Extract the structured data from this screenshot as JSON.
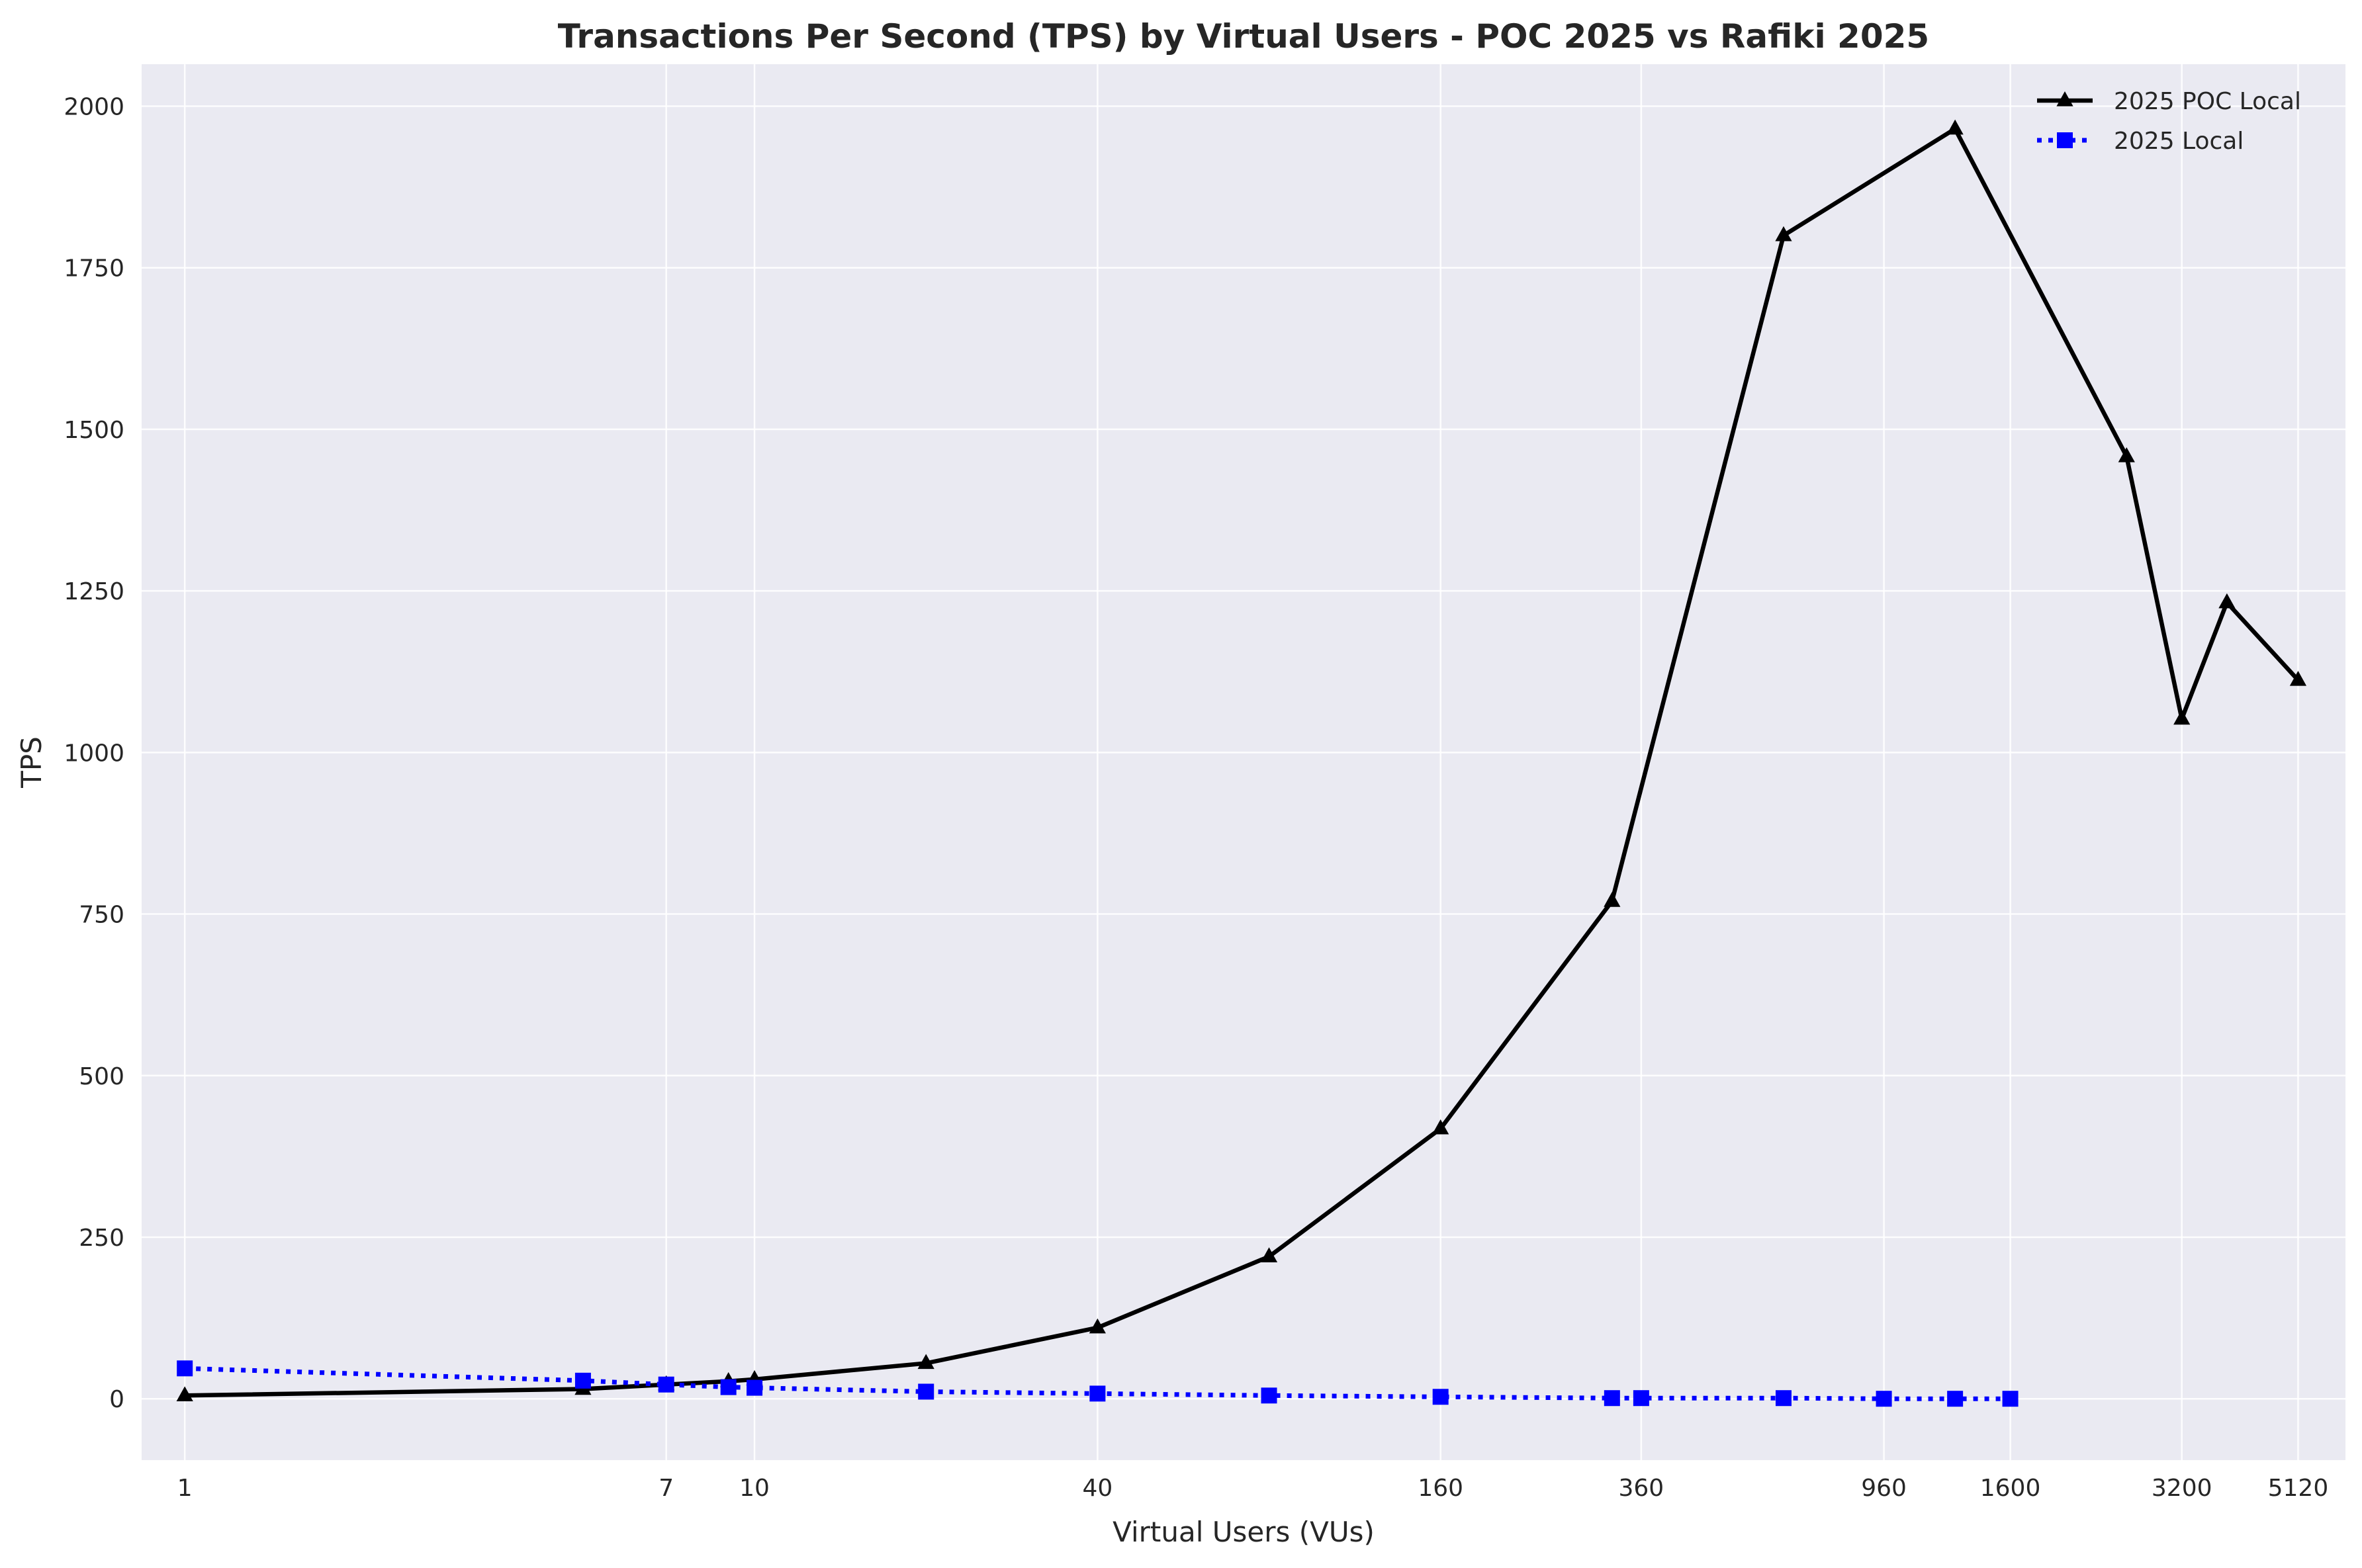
{
  "chart_data": {
    "type": "line",
    "title": "Transactions Per Second (TPS) by Virtual Users - POC 2025 vs Rafiki 2025",
    "xlabel": "Virtual Users (VUs)",
    "ylabel": "TPS",
    "x_scale": "log",
    "xlim": [
      0.84,
      6200
    ],
    "ylim": [
      -95,
      2065
    ],
    "x_ticks": [
      1,
      7,
      10,
      40,
      160,
      360,
      960,
      1600,
      3200,
      5120
    ],
    "x_tick_labels": [
      "1",
      "7",
      "10",
      "40",
      "160",
      "360",
      "960",
      "1600",
      "3200",
      "5120"
    ],
    "y_ticks": [
      0,
      250,
      500,
      750,
      1000,
      1250,
      1500,
      1750,
      2000
    ],
    "y_tick_labels": [
      "0",
      "250",
      "500",
      "750",
      "1000",
      "1250",
      "1500",
      "1750",
      "2000"
    ],
    "grid": true,
    "legend_position": "top-right",
    "series": [
      {
        "name": "2025 POC Local",
        "color": "#000000",
        "line_style": "solid",
        "marker": "triangle",
        "points": [
          {
            "x": 1,
            "y": 5
          },
          {
            "x": 5,
            "y": 15
          },
          {
            "x": 7,
            "y": 22
          },
          {
            "x": 9,
            "y": 27
          },
          {
            "x": 10,
            "y": 30
          },
          {
            "x": 20,
            "y": 55
          },
          {
            "x": 40,
            "y": 110
          },
          {
            "x": 80,
            "y": 220
          },
          {
            "x": 160,
            "y": 418
          },
          {
            "x": 320,
            "y": 770
          },
          {
            "x": 640,
            "y": 1800
          },
          {
            "x": 1280,
            "y": 1965
          },
          {
            "x": 2560,
            "y": 1458
          },
          {
            "x": 3200,
            "y": 1052
          },
          {
            "x": 3840,
            "y": 1232
          },
          {
            "x": 5120,
            "y": 1112
          }
        ]
      },
      {
        "name": "2025 Local",
        "color": "#0000ff",
        "line_style": "dotted",
        "marker": "square",
        "points": [
          {
            "x": 1,
            "y": 47
          },
          {
            "x": 5,
            "y": 28
          },
          {
            "x": 7,
            "y": 22
          },
          {
            "x": 9,
            "y": 18
          },
          {
            "x": 10,
            "y": 17
          },
          {
            "x": 20,
            "y": 11
          },
          {
            "x": 40,
            "y": 8
          },
          {
            "x": 80,
            "y": 5
          },
          {
            "x": 160,
            "y": 3
          },
          {
            "x": 320,
            "y": 1
          },
          {
            "x": 360,
            "y": 1
          },
          {
            "x": 640,
            "y": 1
          },
          {
            "x": 960,
            "y": 0
          },
          {
            "x": 1280,
            "y": 0
          },
          {
            "x": 1600,
            "y": 0
          }
        ]
      }
    ]
  }
}
